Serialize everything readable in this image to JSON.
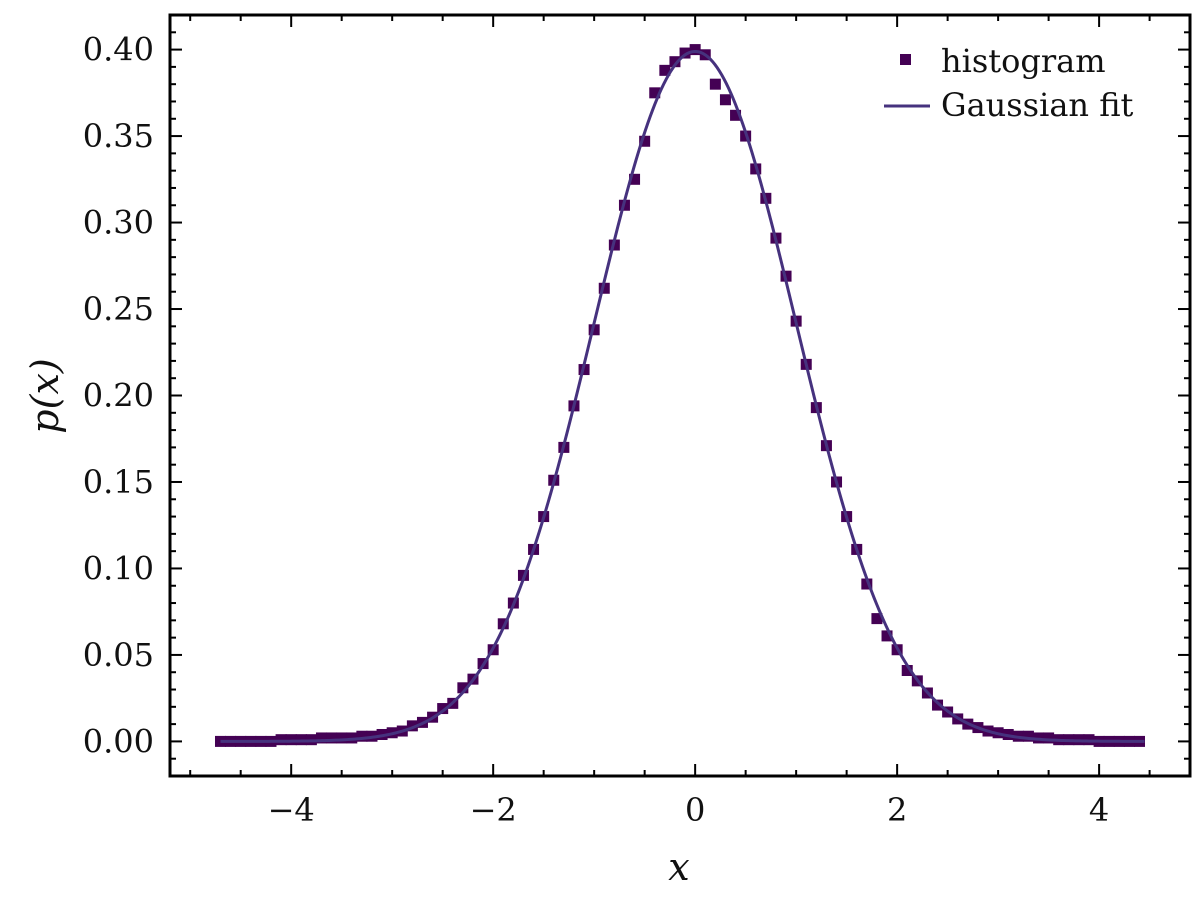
{
  "chart_data": {
    "type": "scatter",
    "xlabel": "x",
    "ylabel": "p(x)",
    "xlim": [
      -5.2,
      4.9
    ],
    "ylim": [
      -0.02,
      0.42
    ],
    "x_ticks": [
      -4,
      -2,
      0,
      2,
      4
    ],
    "x_tick_labels": [
      "−4",
      "−2",
      "0",
      "2",
      "4"
    ],
    "y_ticks": [
      0.0,
      0.05,
      0.1,
      0.15,
      0.2,
      0.25,
      0.3,
      0.35,
      0.4
    ],
    "y_tick_labels": [
      "0.00",
      "0.05",
      "0.10",
      "0.15",
      "0.20",
      "0.25",
      "0.30",
      "0.35",
      "0.40"
    ],
    "grid": false,
    "legend_position": "top-right",
    "legend": [
      "histogram",
      "Gaussian fit"
    ],
    "colors": {
      "histogram": "#440154",
      "fit": "#46327e",
      "axes": "#000000"
    },
    "series": [
      {
        "name": "histogram",
        "kind": "markers",
        "marker": "square",
        "x": [
          -4.7,
          -4.6,
          -4.5,
          -4.4,
          -4.3,
          -4.2,
          -4.1,
          -4.0,
          -3.9,
          -3.8,
          -3.7,
          -3.6,
          -3.5,
          -3.4,
          -3.3,
          -3.2,
          -3.1,
          -3.0,
          -2.9,
          -2.8,
          -2.7,
          -2.6,
          -2.5,
          -2.4,
          -2.3,
          -2.2,
          -2.1,
          -2.0,
          -1.9,
          -1.8,
          -1.7,
          -1.6,
          -1.5,
          -1.4,
          -1.3,
          -1.2,
          -1.1,
          -1.0,
          -0.9,
          -0.8,
          -0.7,
          -0.6,
          -0.5,
          -0.4,
          -0.3,
          -0.2,
          -0.1,
          0.0,
          0.1,
          0.2,
          0.3,
          0.4,
          0.5,
          0.6,
          0.7,
          0.8,
          0.9,
          1.0,
          1.1,
          1.2,
          1.3,
          1.4,
          1.5,
          1.6,
          1.7,
          1.8,
          1.9,
          2.0,
          2.1,
          2.2,
          2.3,
          2.4,
          2.5,
          2.6,
          2.7,
          2.8,
          2.9,
          3.0,
          3.1,
          3.2,
          3.3,
          3.4,
          3.5,
          3.6,
          3.7,
          3.8,
          3.9,
          4.0,
          4.1,
          4.2,
          4.3,
          4.4
        ],
        "y": [
          0.0,
          0.0,
          0.0,
          0.0,
          0.0,
          0.0,
          0.001,
          0.001,
          0.001,
          0.001,
          0.002,
          0.002,
          0.002,
          0.002,
          0.003,
          0.003,
          0.004,
          0.005,
          0.006,
          0.009,
          0.011,
          0.014,
          0.019,
          0.022,
          0.031,
          0.036,
          0.045,
          0.053,
          0.068,
          0.08,
          0.096,
          0.111,
          0.13,
          0.151,
          0.17,
          0.194,
          0.215,
          0.238,
          0.262,
          0.287,
          0.31,
          0.325,
          0.347,
          0.375,
          0.388,
          0.393,
          0.398,
          0.4,
          0.397,
          0.38,
          0.371,
          0.362,
          0.35,
          0.331,
          0.314,
          0.291,
          0.269,
          0.243,
          0.218,
          0.193,
          0.171,
          0.15,
          0.13,
          0.111,
          0.091,
          0.071,
          0.061,
          0.053,
          0.041,
          0.035,
          0.028,
          0.021,
          0.017,
          0.013,
          0.01,
          0.008,
          0.006,
          0.005,
          0.004,
          0.003,
          0.003,
          0.002,
          0.002,
          0.001,
          0.001,
          0.001,
          0.001,
          0.0,
          0.0,
          0.0,
          0.0,
          0.0
        ]
      },
      {
        "name": "Gaussian fit",
        "kind": "line",
        "mean": 0.0,
        "std": 1.0,
        "x_range": [
          -4.7,
          4.45
        ]
      }
    ]
  }
}
